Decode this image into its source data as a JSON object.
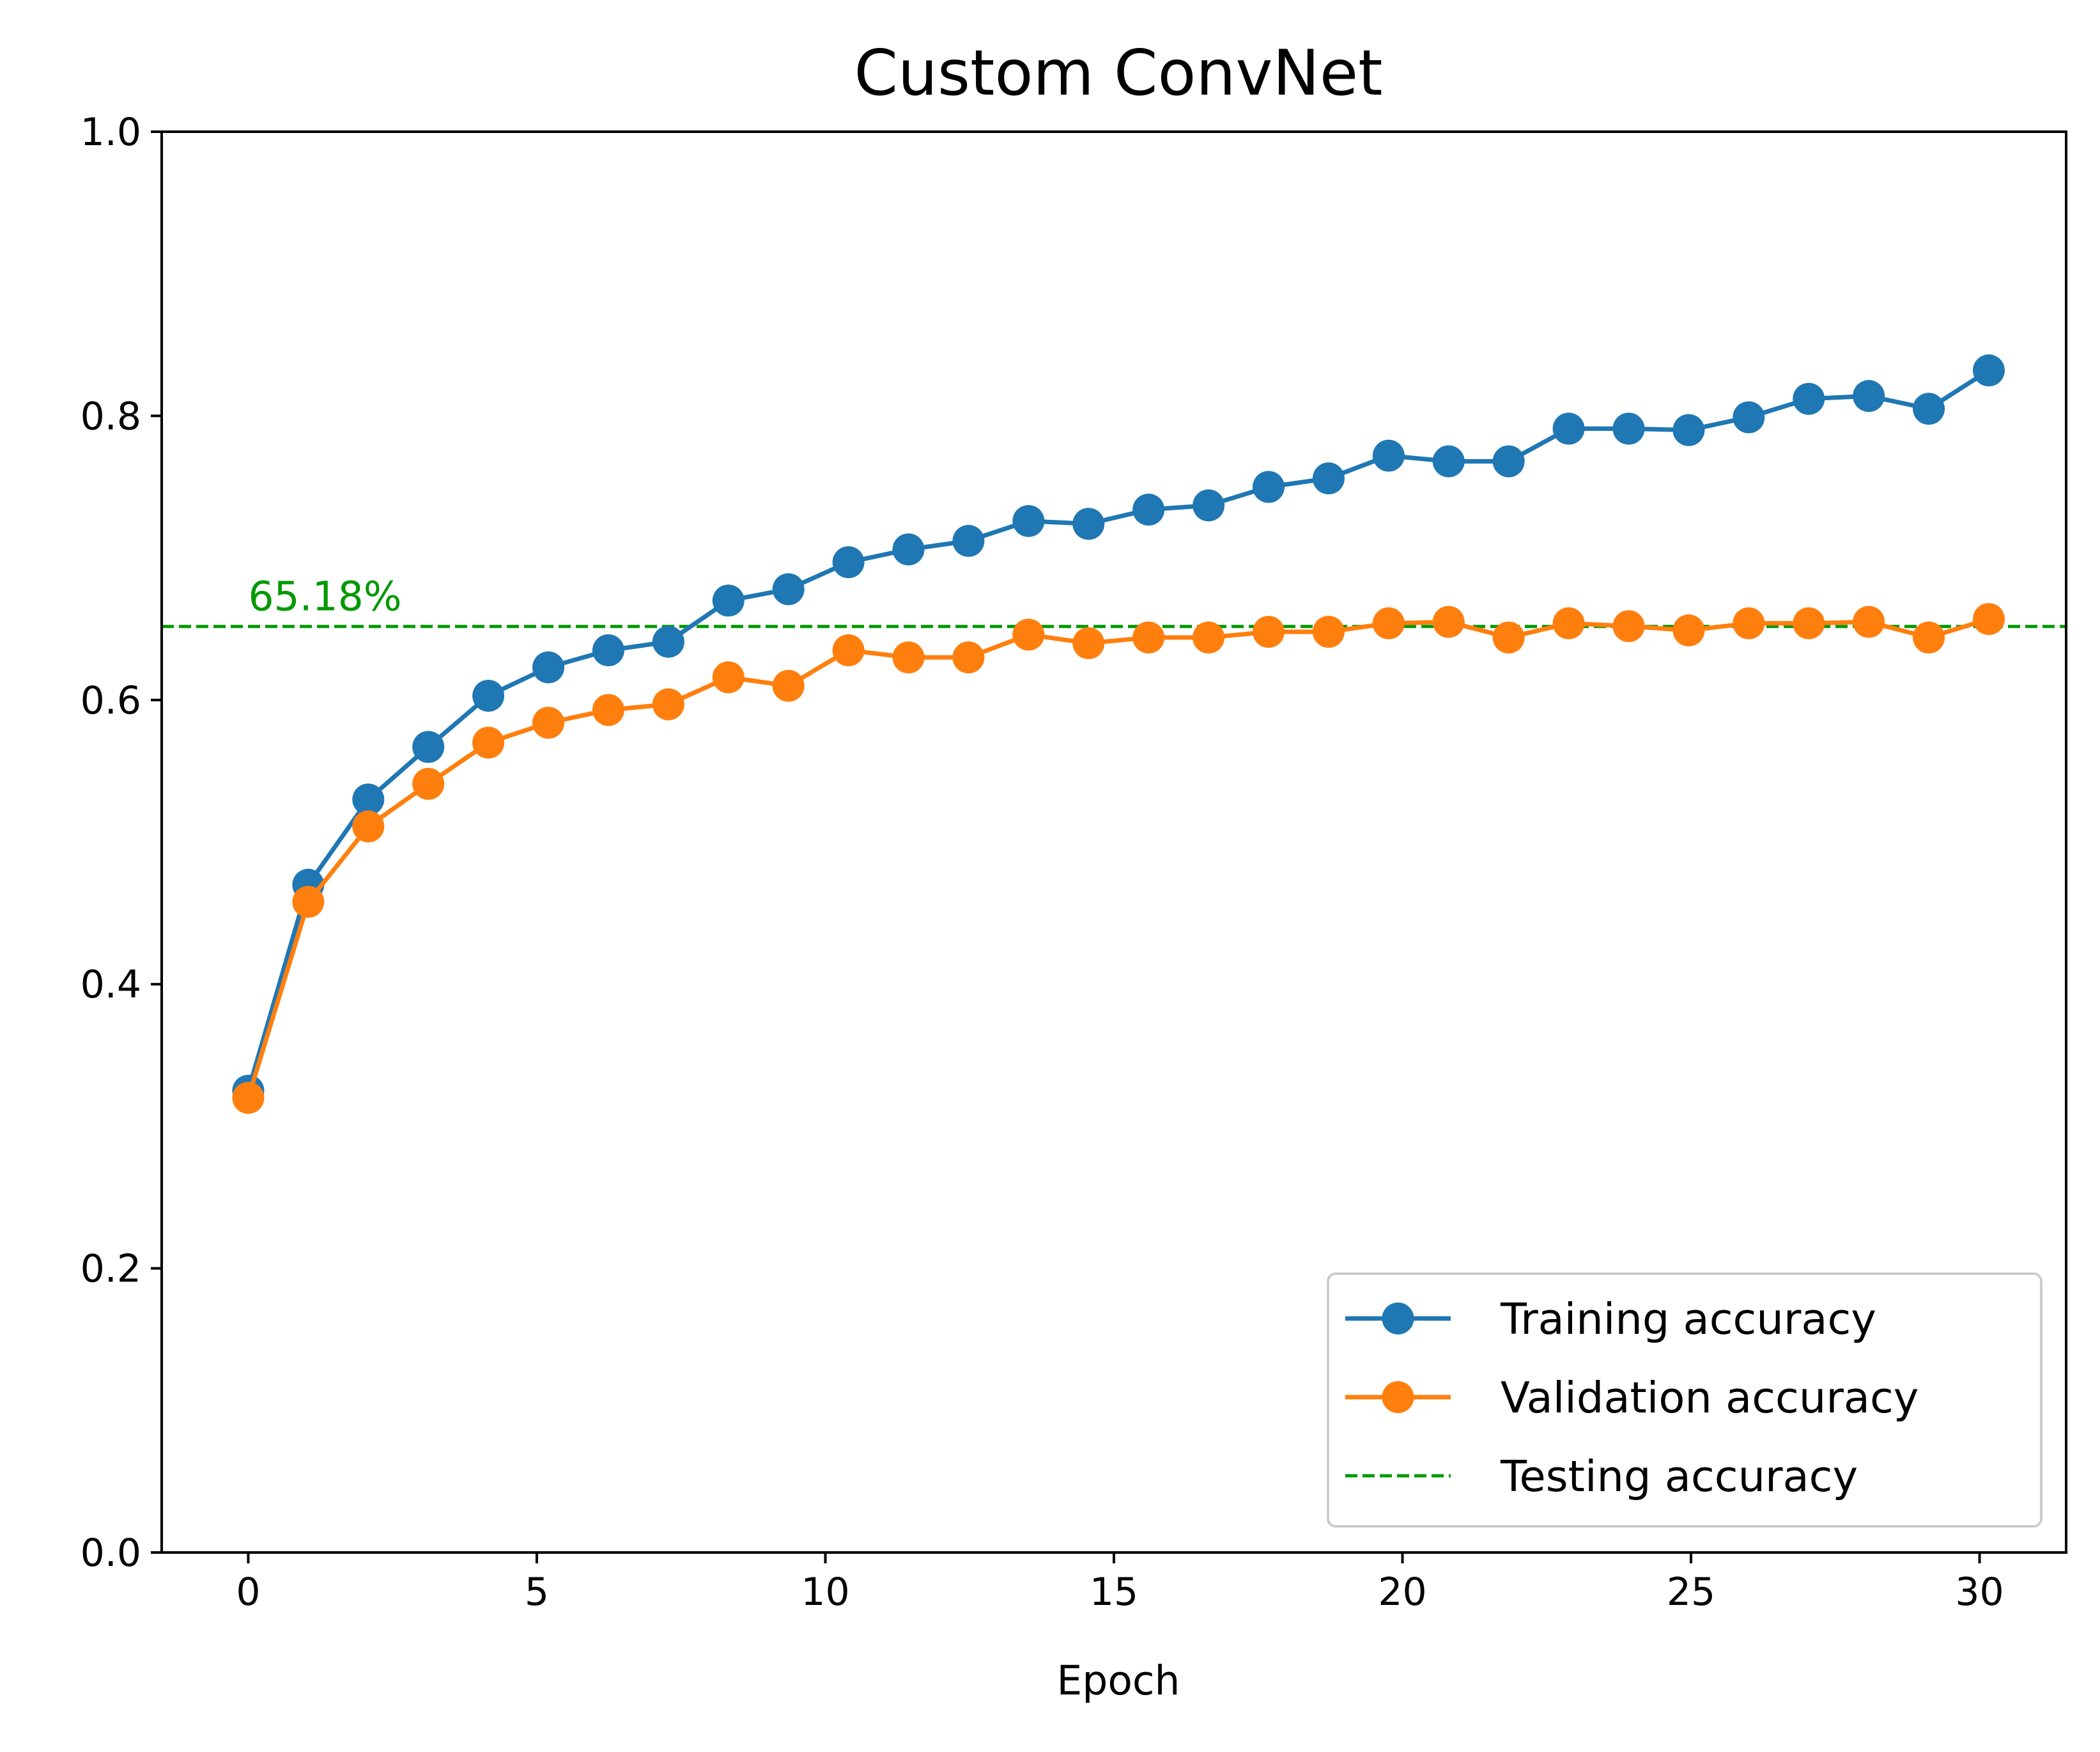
{
  "chart_data": {
    "type": "line",
    "title": "Custom ConvNet",
    "xlabel": "Epoch",
    "ylabel": "",
    "xlim": [
      -1.5,
      31.5
    ],
    "ylim": [
      0.0,
      1.0
    ],
    "xticks": [
      0,
      5,
      10,
      15,
      20,
      25,
      30
    ],
    "xtick_labels": [
      "0",
      "5",
      "10",
      "15",
      "20",
      "25",
      "30"
    ],
    "yticks": [
      0.0,
      0.2,
      0.4,
      0.6,
      0.8,
      1.0
    ],
    "ytick_labels": [
      "0.0",
      "0.2",
      "0.4",
      "0.6",
      "0.8",
      "1.0"
    ],
    "grid": false,
    "legend_position": "lower-right",
    "x": [
      0,
      1.04,
      2.08,
      3.12,
      4.16,
      5.2,
      6.24,
      7.28,
      8.32,
      9.36,
      10.4,
      11.44,
      12.48,
      13.52,
      14.56,
      15.6,
      16.64,
      17.68,
      18.72,
      19.76,
      20.8,
      21.84,
      22.88,
      23.92,
      24.96,
      26.0,
      27.04,
      28.08,
      29.12,
      30.16
    ],
    "series": [
      {
        "name": "Training accuracy",
        "color": "#1f77b4",
        "marker": "circle",
        "values": [
          0.325,
          0.47,
          0.53,
          0.567,
          0.603,
          0.623,
          0.635,
          0.641,
          0.67,
          0.678,
          0.697,
          0.706,
          0.712,
          0.726,
          0.724,
          0.734,
          0.737,
          0.75,
          0.756,
          0.772,
          0.768,
          0.768,
          0.791,
          0.791,
          0.79,
          0.799,
          0.812,
          0.814,
          0.805,
          0.832
        ]
      },
      {
        "name": "Validation accuracy",
        "color": "#ff7f0e",
        "marker": "circle",
        "values": [
          0.32,
          0.458,
          0.511,
          0.541,
          0.57,
          0.584,
          0.593,
          0.597,
          0.616,
          0.61,
          0.635,
          0.63,
          0.63,
          0.646,
          0.64,
          0.644,
          0.644,
          0.648,
          0.648,
          0.654,
          0.655,
          0.644,
          0.654,
          0.652,
          0.649,
          0.654,
          0.654,
          0.655,
          0.644,
          0.657
        ]
      }
    ],
    "reference_lines": [
      {
        "name": "Testing accuracy",
        "value": 0.6518,
        "color": "#009900",
        "style": "dashed",
        "annotation": "65.18%",
        "annotation_x": 0
      }
    ]
  }
}
